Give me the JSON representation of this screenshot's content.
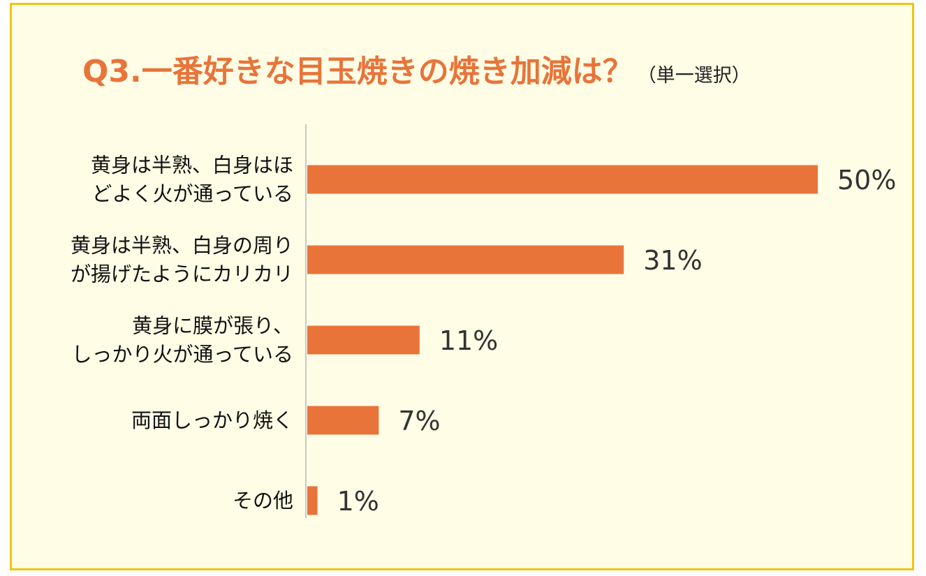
{
  "title": {
    "main": "Q3.一番好きな目玉焼きの焼き加減は？",
    "sub": "（単一選択）"
  },
  "colors": {
    "bar": "#e8743a",
    "title": "#e8743a",
    "background": "#fffde6",
    "border": "#f1c40f"
  },
  "chart_data": {
    "type": "bar",
    "orientation": "horizontal",
    "categories": [
      [
        "黄身は半熟、白身はほ",
        "どよく火が通っている"
      ],
      [
        "黄身は半熟、白身の周り",
        "が揚げたようにカリカリ"
      ],
      [
        "黄身に膜が張り、",
        "しっかり火が通っている"
      ],
      [
        "両面しっかり焼く"
      ],
      [
        "その他"
      ]
    ],
    "values": [
      50,
      31,
      11,
      7,
      1
    ],
    "value_labels": [
      "50%",
      "31%",
      "11%",
      "7%",
      "1%"
    ],
    "unit": "%",
    "xlim": [
      0,
      50
    ],
    "grid": false,
    "legend": "none"
  }
}
